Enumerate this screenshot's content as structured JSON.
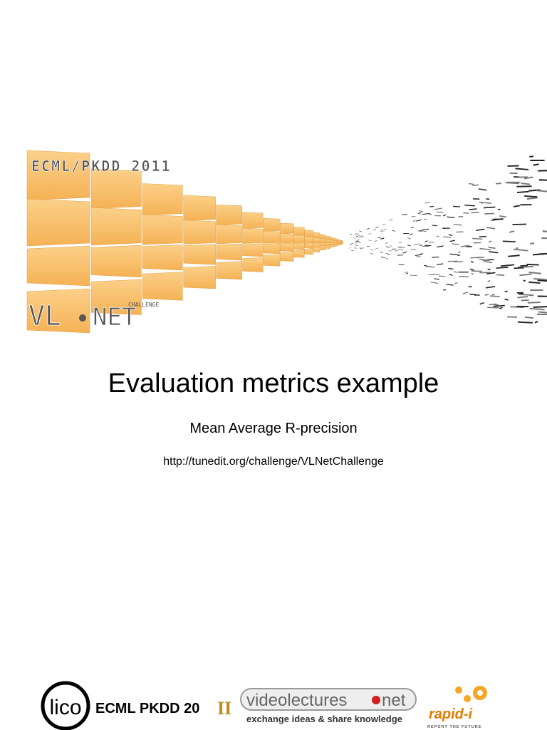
{
  "banner": {
    "event": "ECML/PKDD 2011",
    "logo_left": "VL",
    "logo_right": "NET",
    "logo_small": "CHALLENGE"
  },
  "title": "Evaluation metrics example",
  "subtitle": "Mean Average R-precision",
  "url": "http://tunedit.org/challenge/VLNetChallenge",
  "footer": {
    "lico": "lico",
    "ecml": "ECML PKDD 20",
    "ecml_year": "II",
    "videolectures": "videolectures",
    "net": "net",
    "tagline": "exchange ideas & share knowledge",
    "rapid": "rapid-i",
    "rapid_tagline": "REPORT THE FUTURE"
  }
}
